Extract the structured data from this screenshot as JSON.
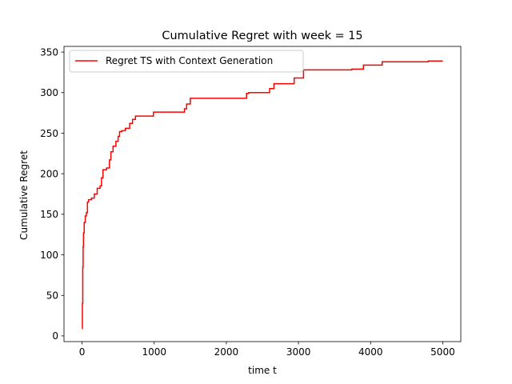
{
  "chart_data": {
    "type": "line",
    "title": "Cumulative Regret with week = 15",
    "xlabel": "time t",
    "ylabel": "Cumulative Regret",
    "xlim": [
      -250,
      5250
    ],
    "ylim": [
      -7,
      357
    ],
    "xticks": [
      0,
      1000,
      2000,
      3000,
      4000,
      5000
    ],
    "yticks": [
      0,
      50,
      100,
      150,
      200,
      250,
      300,
      350
    ],
    "grid": false,
    "legend": "upper-left",
    "series": [
      {
        "name": "Regret TS with Context Generation",
        "color": "#ff0000",
        "step": true,
        "x": [
          0,
          5,
          10,
          15,
          20,
          30,
          45,
          60,
          75,
          90,
          130,
          170,
          210,
          250,
          270,
          290,
          340,
          380,
          400,
          430,
          470,
          500,
          520,
          550,
          600,
          660,
          700,
          740,
          990,
          1420,
          1450,
          1500,
          2280,
          2310,
          2600,
          2660,
          2940,
          3070,
          3740,
          3900,
          4160,
          4800,
          5000
        ],
        "y": [
          9,
          40,
          85,
          110,
          127,
          140,
          148,
          152,
          165,
          168,
          170,
          175,
          182,
          185,
          195,
          205,
          207,
          217,
          227,
          234,
          240,
          246,
          252,
          253,
          256,
          262,
          267,
          271,
          276,
          280,
          286,
          293,
          299,
          300,
          305,
          311,
          318,
          328,
          329,
          334,
          338,
          339,
          339
        ]
      }
    ]
  }
}
